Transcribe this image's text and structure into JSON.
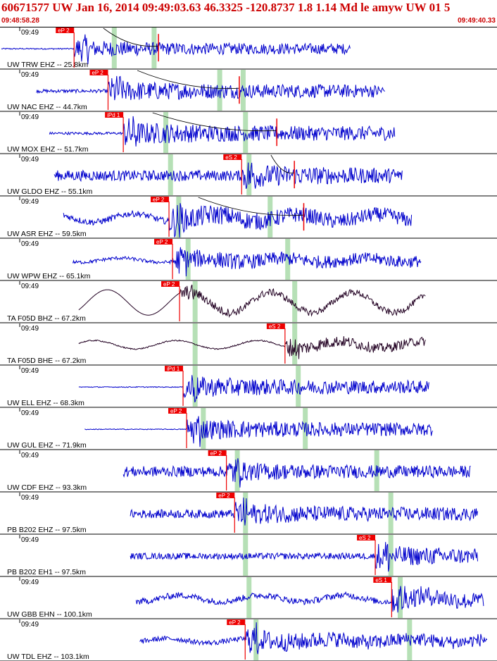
{
  "header": {
    "title": "60671577 UW Jan 16, 2014 09:49:03.63   46.3325 -120.8737  1.8 1.14 Md le amyw UW 01   5",
    "start_time": "09:48:58.28",
    "end_time": "09:49:40.33"
  },
  "colors": {
    "header_text": "#cc0000",
    "trace": "#0000cc",
    "trace_broadband": "#220022",
    "pick_box": "#ee0000",
    "predicted_band": "#b6e0b6",
    "separator": "#000000"
  },
  "chart_data": {
    "type": "line",
    "title": "60671577 UW Jan 16, 2014 09:49:03.63   46.3325 -120.8737  1.8 1.14 Md le amyw UW 01   5",
    "x_unit": "time (UTC)",
    "x_range": [
      "09:48:58.28",
      "09:49:40.33"
    ],
    "series": [
      {
        "label": "UW TRW EHZ -- 25.8km",
        "minute": "09:49",
        "pick": "eP 2",
        "pick_t": 6.2,
        "data_start": 0.0,
        "data_end": 29.8,
        "pre_amp": 0.03,
        "post_amp": 0.45,
        "lf": 0,
        "color": "#0000cc",
        "bands": [
          9.6,
          13.0
        ],
        "s_t": 13.4
      },
      {
        "label": "UW NAC EHZ -- 44.7km",
        "minute": "09:49",
        "pick": "eP 2",
        "pick_t": 9.1,
        "data_start": 3.0,
        "data_end": 32.7,
        "pre_amp": 0.08,
        "post_amp": 0.55,
        "lf": 0,
        "color": "#0000cc",
        "bands": [
          18.6,
          20.6
        ],
        "s_t": 20.3
      },
      {
        "label": "UW MOX EHZ -- 51.7km",
        "minute": "09:49",
        "pick": "iPd 1",
        "pick_t": 10.4,
        "data_start": 4.1,
        "data_end": 33.6,
        "pre_amp": 0.06,
        "post_amp": 0.6,
        "lf": 0,
        "color": "#0000cc",
        "bands": [
          14.0,
          20.8
        ],
        "s_t": 23.5
      },
      {
        "label": "UW GLDO EHZ -- 55.1km",
        "minute": "09:49",
        "pick": "eS 2",
        "pick_t": 20.5,
        "data_start": 4.5,
        "data_end": 34.2,
        "pre_amp": 0.25,
        "post_amp": 0.6,
        "lf": 0,
        "color": "#0000cc",
        "bands": [
          14.4,
          21.1
        ],
        "s_t": 25.0
      },
      {
        "label": "UW ASR EHZ -- 59.5km",
        "minute": "09:49",
        "pick": "eP 2",
        "pick_t": 14.3,
        "data_start": 5.3,
        "data_end": 35.0,
        "pre_amp": 0.15,
        "post_amp": 0.6,
        "lf": 0.2,
        "color": "#0000cc",
        "bands": [
          15.1,
          22.9
        ],
        "s_t": 25.8
      },
      {
        "label": "UW WPW EHZ -- 65.1km",
        "minute": "09:49",
        "pick": "eP 2",
        "pick_t": 14.6,
        "data_start": 6.1,
        "data_end": 35.8,
        "pre_amp": 0.08,
        "post_amp": 0.5,
        "lf": 0.1,
        "color": "#0000cc",
        "bands": [
          15.9,
          24.4
        ],
        "s_t": null
      },
      {
        "label": "TA F05D BHZ -- 67.2km",
        "minute": "09:49",
        "pick": "eP 2",
        "pick_t": 15.2,
        "data_start": 6.6,
        "data_end": 36.2,
        "pre_amp": 0.0,
        "post_amp": 0.25,
        "lf": 0.6,
        "color": "#220022",
        "bands": [
          16.5,
          25.0
        ],
        "s_t": null
      },
      {
        "label": "TA F05D BHE -- 67.2km",
        "minute": "09:49",
        "pick": "eS 2",
        "pick_t": 24.2,
        "data_start": 6.6,
        "data_end": 36.2,
        "pre_amp": 0.03,
        "post_amp": 0.35,
        "lf": 0.2,
        "color": "#220022",
        "bands": [
          16.5,
          25.0
        ],
        "s_t": null
      },
      {
        "label": "UW ELL EHZ -- 68.3km",
        "minute": "09:49",
        "pick": "iPd 1",
        "pick_t": 15.5,
        "data_start": 6.6,
        "data_end": 36.5,
        "pre_amp": 0.02,
        "post_amp": 0.55,
        "lf": 0,
        "color": "#0000cc",
        "bands": [
          16.5,
          25.3
        ],
        "s_t": null
      },
      {
        "label": "UW GUL EHZ -- 71.9km",
        "minute": "09:49",
        "pick": "eP 2",
        "pick_t": 15.8,
        "data_start": 7.1,
        "data_end": 36.8,
        "pre_amp": 0.02,
        "post_amp": 0.55,
        "lf": 0,
        "color": "#0000cc",
        "bands": [
          17.2,
          25.9
        ],
        "s_t": null
      },
      {
        "label": "UW CDF EHZ -- 93.3km",
        "minute": "09:49",
        "pick": "eP 2",
        "pick_t": 19.2,
        "data_start": 10.4,
        "data_end": 40.1,
        "pre_amp": 0.25,
        "post_amp": 0.5,
        "lf": 0,
        "color": "#0000cc",
        "bands": [
          20.1,
          32.0
        ],
        "s_t": null
      },
      {
        "label": "PB B202 EHZ -- 97.5km",
        "minute": "09:49",
        "pick": "eP 2",
        "pick_t": 19.9,
        "data_start": 11.0,
        "data_end": 40.7,
        "pre_amp": 0.2,
        "post_amp": 0.55,
        "lf": 0,
        "color": "#0000cc",
        "bands": [
          20.8,
          33.2
        ],
        "s_t": null
      },
      {
        "label": "PB B202 EH1 -- 97.5km",
        "minute": "09:49",
        "pick": "eS 2",
        "pick_t": 31.9,
        "data_start": 11.0,
        "data_end": 40.7,
        "pre_amp": 0.15,
        "post_amp": 0.55,
        "lf": 0,
        "color": "#0000cc",
        "bands": [
          20.8,
          33.2
        ],
        "s_t": null
      },
      {
        "label": "UW GBB EHN -- 100.1km",
        "minute": "09:49",
        "pick": "eS 1",
        "pick_t": 33.3,
        "data_start": 11.5,
        "data_end": 41.2,
        "pre_amp": 0.15,
        "post_amp": 0.55,
        "lf": 0.15,
        "color": "#0000cc",
        "bands": [
          21.1,
          34.0
        ],
        "s_t": null
      },
      {
        "label": "UW TDL EHZ -- 103.1km",
        "minute": "09:49",
        "pick": "eP 2",
        "pick_t": 20.8,
        "data_start": 11.8,
        "data_end": 41.5,
        "pre_amp": 0.12,
        "post_amp": 0.55,
        "lf": 0.1,
        "color": "#0000cc",
        "bands": [
          21.7,
          34.8
        ],
        "s_t": null
      }
    ]
  }
}
